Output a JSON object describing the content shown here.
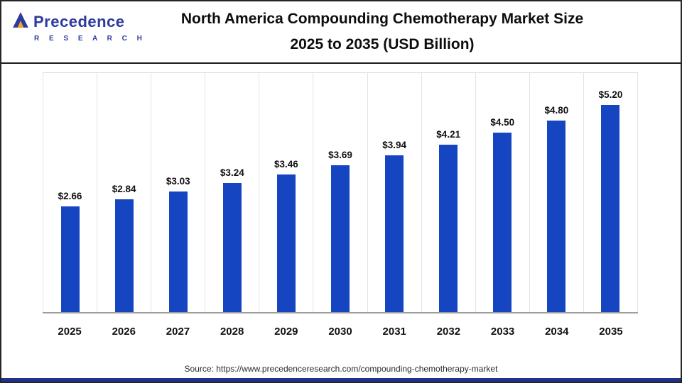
{
  "header": {
    "logo": {
      "name": "Precedence",
      "sub": "R E S E A R C H"
    },
    "title_line1": "North America Compounding Chemotherapy Market Size",
    "title_line2": "2025 to 2035 (USD Billion)"
  },
  "chart_data": {
    "type": "bar",
    "title": "North America Compounding Chemotherapy Market Size 2025 to 2035 (USD Billion)",
    "categories": [
      "2025",
      "2026",
      "2027",
      "2028",
      "2029",
      "2030",
      "2031",
      "2032",
      "2033",
      "2034",
      "2035"
    ],
    "values": [
      2.66,
      2.84,
      3.03,
      3.24,
      3.46,
      3.69,
      3.94,
      4.21,
      4.5,
      4.8,
      5.2
    ],
    "labels": [
      "$2.66",
      "$2.84",
      "$3.03",
      "$3.24",
      "$3.46",
      "$3.69",
      "$3.94",
      "$4.21",
      "$4.50",
      "$4.80",
      "$5.20"
    ],
    "bar_color": "#1545C0",
    "xlabel": "",
    "ylabel": "",
    "ylim": [
      0,
      6
    ],
    "grid": "vertical",
    "legend": "none"
  },
  "footer": {
    "source": "Source: https://www.precedenceresearch.com/compounding-chemotherapy-market"
  }
}
